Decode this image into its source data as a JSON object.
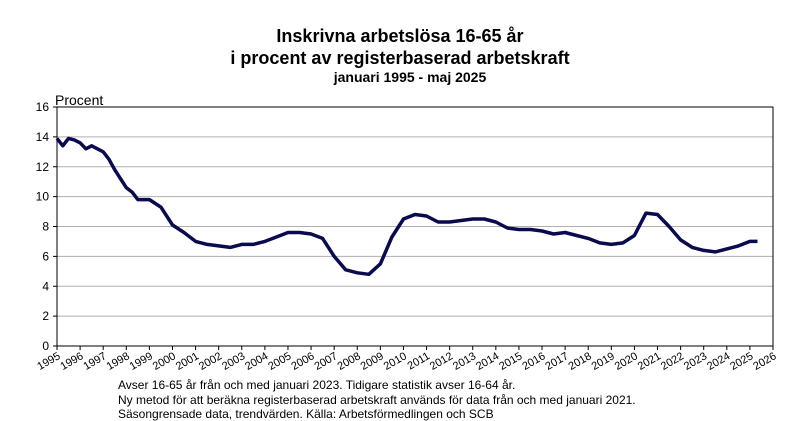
{
  "chart_data": {
    "type": "line",
    "title": "Inskrivna arbetslösa 16-65 år",
    "title_line2": "i procent av registerbaserad arbetskraft",
    "subtitle": "januari 1995 - maj 2025",
    "y_label": "Procent",
    "notes": [
      "Avser 16-65 år från och med januari 2023. Tidigare statistik avser 16-64 år.",
      "Ny metod för att beräkna registerbaserad arbetskraft används för data från och med januari 2021.",
      "Säsongrensade data, trendvärden. Källa: Arbetsförmedlingen och SCB"
    ],
    "x": [
      1995.0,
      1995.25,
      1995.5,
      1995.75,
      1996.0,
      1996.25,
      1996.5,
      1996.75,
      1997.0,
      1997.25,
      1997.5,
      1998.0,
      1998.25,
      1998.5,
      1998.75,
      1999.0,
      1999.5,
      2000.0,
      2000.5,
      2001.0,
      2001.5,
      2002.0,
      2002.5,
      2003.0,
      2003.5,
      2004.0,
      2004.5,
      2005.0,
      2005.5,
      2006.0,
      2006.5,
      2007.0,
      2007.5,
      2008.0,
      2008.5,
      2009.0,
      2009.5,
      2010.0,
      2010.5,
      2011.0,
      2011.5,
      2012.0,
      2012.5,
      2013.0,
      2013.5,
      2014.0,
      2014.5,
      2015.0,
      2015.5,
      2016.0,
      2016.5,
      2017.0,
      2017.5,
      2018.0,
      2018.5,
      2019.0,
      2019.5,
      2020.0,
      2020.5,
      2021.0,
      2021.5,
      2022.0,
      2022.5,
      2023.0,
      2023.5,
      2024.0,
      2024.5,
      2025.0,
      2025.33
    ],
    "series": [
      {
        "name": "Inskrivna arbetslösa",
        "color": "#0a0a4f",
        "values": [
          13.9,
          13.4,
          13.9,
          13.8,
          13.6,
          13.2,
          13.4,
          13.2,
          13.0,
          12.5,
          11.8,
          10.6,
          10.3,
          9.8,
          9.8,
          9.8,
          9.3,
          8.1,
          7.6,
          7.0,
          6.8,
          6.7,
          6.6,
          6.8,
          6.8,
          7.0,
          7.3,
          7.6,
          7.6,
          7.5,
          7.2,
          6.0,
          5.1,
          4.9,
          4.8,
          5.5,
          7.3,
          8.5,
          8.8,
          8.7,
          8.3,
          8.3,
          8.4,
          8.5,
          8.5,
          8.3,
          7.9,
          7.8,
          7.8,
          7.7,
          7.5,
          7.6,
          7.4,
          7.2,
          6.9,
          6.8,
          6.9,
          7.4,
          8.9,
          8.8,
          8.0,
          7.1,
          6.6,
          6.4,
          6.3,
          6.5,
          6.7,
          7.0,
          7.0
        ]
      }
    ],
    "xlim": [
      1995,
      2026
    ],
    "xticks": [
      1995,
      1996,
      1997,
      1998,
      1999,
      2000,
      2001,
      2002,
      2003,
      2004,
      2005,
      2006,
      2007,
      2008,
      2009,
      2010,
      2011,
      2012,
      2013,
      2014,
      2015,
      2016,
      2017,
      2018,
      2019,
      2020,
      2021,
      2022,
      2023,
      2024,
      2025,
      2026
    ],
    "ylim": [
      0,
      16
    ],
    "yticks": [
      0,
      2,
      4,
      6,
      8,
      10,
      12,
      14,
      16
    ],
    "grid": true
  }
}
